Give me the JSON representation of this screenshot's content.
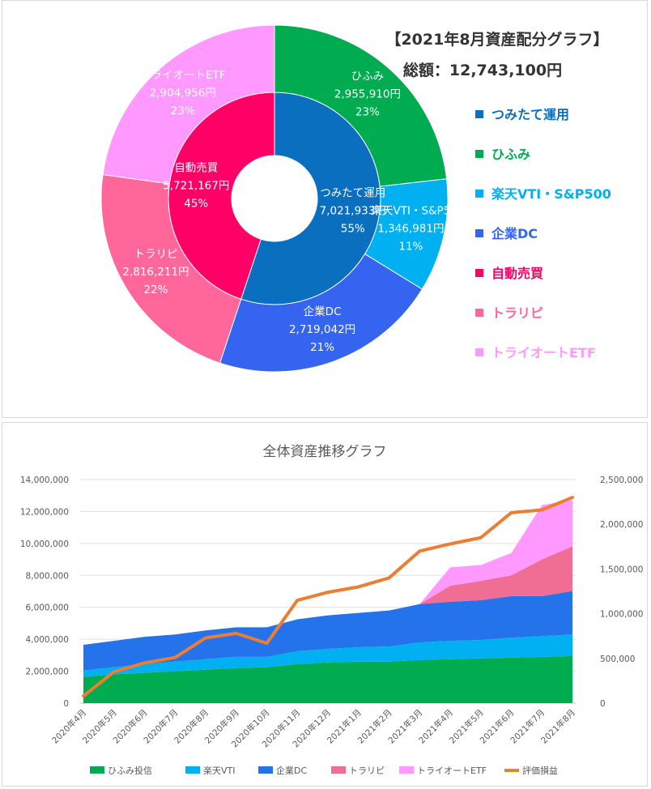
{
  "top_chart": {
    "title": "【2021年8月資産配分グラフ】",
    "total_text": "総額：12,743,100円",
    "colors": {
      "つみたて運用": "#0b6fbf",
      "ひふみ": "#00ac4f",
      "楽天VTI・S&P500": "#00b0f0",
      "企業DC": "#3464f0",
      "自動売買": "#ff0066",
      "トラリピ": "#ff6699",
      "トライオートETF": "#ff99ff"
    }
  },
  "bottom_chart": {
    "title": "全体資産推移グラフ"
  },
  "chart_data": [
    {
      "type": "pie",
      "subtype": "doughnut",
      "inner_ring": [
        {
          "name": "つみたて運用",
          "value": 7021933,
          "value_label": "7,021,933円",
          "percent_label": "55%"
        },
        {
          "name": "自動売買",
          "value": 5721167,
          "value_label": "5,721,167円",
          "percent_label": "45%"
        }
      ],
      "outer_ring": [
        {
          "name": "ひふみ",
          "value": 2955910,
          "value_label": "2,955,910円",
          "percent_label": "23%"
        },
        {
          "name": "楽天VTI・S&P500",
          "short_label": "楽天VTI・S&P5",
          "value": 1346981,
          "value_label": "1,346,981円",
          "percent_label": "11%"
        },
        {
          "name": "企業DC",
          "value": 2719042,
          "value_label": "2,719,042円",
          "percent_label": "21%"
        },
        {
          "name": "トラリピ",
          "value": 2816211,
          "value_label": "2,816,211円",
          "percent_label": "22%"
        },
        {
          "name": "トライオートETF",
          "value": 2904956,
          "value_label": "2,904,956円",
          "percent_label": "23%"
        }
      ],
      "legend": [
        "つみたて運用",
        "ひふみ",
        "楽天VTI・S&P500",
        "企業DC",
        "自動売買",
        "トラリピ",
        "トライオートETF"
      ],
      "legend_position": "right"
    },
    {
      "type": "area",
      "stacked": true,
      "title": "全体資産推移グラフ",
      "categories": [
        "2020年4月",
        "2020年5月",
        "2020年6月",
        "2020年7月",
        "2020年8月",
        "2020年9月",
        "2020年10月",
        "2020年11月",
        "2020年12月",
        "2021年1月",
        "2021年2月",
        "2021年3月",
        "2021年4月",
        "2021年5月",
        "2021年6月",
        "2021年7月",
        "2021年8月"
      ],
      "ylim": [
        0,
        14000000
      ],
      "y_ticks": [
        "0",
        "2,000,000",
        "4,000,000",
        "6,000,000",
        "8,000,000",
        "10,000,000",
        "12,000,000",
        "14,000,000"
      ],
      "y2lim": [
        0,
        2500000
      ],
      "y2_ticks": [
        "0",
        "500,000",
        "1,000,000",
        "1,500,000",
        "2,000,000",
        "2,500,000"
      ],
      "series": [
        {
          "name": "ひふみ投信",
          "color": "#00ac4f",
          "axis": "left",
          "values": [
            1650000,
            1800000,
            1900000,
            2000000,
            2100000,
            2200000,
            2250000,
            2450000,
            2550000,
            2600000,
            2600000,
            2700000,
            2750000,
            2800000,
            2850000,
            2900000,
            2950000
          ]
        },
        {
          "name": "楽天VTI",
          "color": "#00b0f0",
          "axis": "left",
          "values": [
            400000,
            450000,
            550000,
            600000,
            650000,
            700000,
            650000,
            800000,
            850000,
            900000,
            950000,
            1100000,
            1150000,
            1150000,
            1250000,
            1300000,
            1350000
          ]
        },
        {
          "name": "企業DC",
          "color": "#2573eb",
          "axis": "left",
          "values": [
            1600000,
            1650000,
            1700000,
            1700000,
            1800000,
            1850000,
            1850000,
            2000000,
            2100000,
            2150000,
            2250000,
            2400000,
            2450000,
            2500000,
            2600000,
            2500000,
            2720000
          ]
        },
        {
          "name": "トラリピ",
          "color": "#f06e94",
          "axis": "left",
          "values": [
            0,
            0,
            0,
            0,
            0,
            0,
            0,
            0,
            0,
            0,
            0,
            0,
            1000000,
            1200000,
            1300000,
            2300000,
            2800000
          ]
        },
        {
          "name": "トライオートETF",
          "color": "#ff99ff",
          "axis": "left",
          "values": [
            0,
            0,
            0,
            0,
            0,
            0,
            0,
            0,
            0,
            0,
            0,
            0,
            1150000,
            1000000,
            1400000,
            3400000,
            2900000
          ]
        },
        {
          "name": "評価損益",
          "type": "line",
          "color": "#ed7d31",
          "axis": "right",
          "values": [
            80000,
            350000,
            450000,
            510000,
            730000,
            780000,
            670000,
            1150000,
            1240000,
            1300000,
            1400000,
            1700000,
            1780000,
            1850000,
            2130000,
            2160000,
            2300000
          ]
        }
      ],
      "legend_position": "bottom"
    }
  ]
}
